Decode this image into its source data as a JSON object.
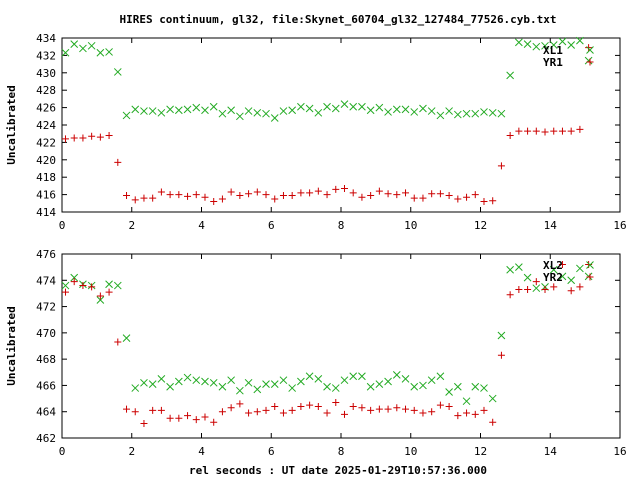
{
  "title": "HIRES continuum, gl32, file:Skynet_60704_gl32_127484_77526.cyb.txt",
  "xlabel": "rel seconds : UT date 2025-01-29T10:57:36.000",
  "colors": {
    "red": "#cc0000",
    "green": "#22aa22",
    "axis": "#000000"
  },
  "chart_data": [
    {
      "type": "scatter",
      "ylabel": "Uncalibrated",
      "xlim": [
        0,
        16
      ],
      "ylim": [
        414,
        434
      ],
      "xticks": [
        0,
        2,
        4,
        6,
        8,
        10,
        12,
        14,
        16
      ],
      "yticks": [
        414,
        416,
        418,
        420,
        422,
        424,
        426,
        428,
        430,
        432,
        434
      ],
      "legend": "top-right",
      "series": [
        {
          "name": "XL1",
          "marker": "x",
          "color": "#22aa22",
          "x": [
            0.1,
            0.35,
            0.6,
            0.85,
            1.1,
            1.35,
            1.6,
            1.85,
            2.1,
            2.35,
            2.6,
            2.85,
            3.1,
            3.35,
            3.6,
            3.85,
            4.1,
            4.35,
            4.6,
            4.85,
            5.1,
            5.35,
            5.6,
            5.85,
            6.1,
            6.35,
            6.6,
            6.85,
            7.1,
            7.35,
            7.6,
            7.85,
            8.1,
            8.35,
            8.6,
            8.85,
            9.1,
            9.35,
            9.6,
            9.85,
            10.1,
            10.35,
            10.6,
            10.85,
            11.1,
            11.35,
            11.6,
            11.85,
            12.1,
            12.35,
            12.6,
            12.85,
            13.1,
            13.35,
            13.6,
            13.85,
            14.1,
            14.35,
            14.6,
            14.85,
            15.1
          ],
          "y": [
            432.3,
            433.3,
            432.8,
            433.1,
            432.3,
            432.4,
            430.1,
            425.1,
            425.8,
            425.6,
            425.6,
            425.4,
            425.8,
            425.7,
            425.8,
            426.0,
            425.7,
            426.1,
            425.3,
            425.7,
            425.0,
            425.6,
            425.4,
            425.3,
            424.8,
            425.6,
            425.7,
            426.1,
            425.9,
            425.4,
            426.1,
            425.9,
            426.4,
            426.1,
            426.1,
            425.7,
            426.0,
            425.5,
            425.8,
            425.8,
            425.5,
            425.9,
            425.6,
            425.1,
            425.6,
            425.2,
            425.3,
            425.3,
            425.5,
            425.4,
            425.3,
            429.7,
            433.5,
            433.3,
            433.0,
            433.1,
            433.2,
            433.6,
            433.2,
            433.7,
            431.4
          ]
        },
        {
          "name": "YR1",
          "marker": "+",
          "color": "#cc0000",
          "x": [
            0.1,
            0.35,
            0.6,
            0.85,
            1.1,
            1.35,
            1.6,
            1.85,
            2.1,
            2.35,
            2.6,
            2.85,
            3.1,
            3.35,
            3.6,
            3.85,
            4.1,
            4.35,
            4.6,
            4.85,
            5.1,
            5.35,
            5.6,
            5.85,
            6.1,
            6.35,
            6.6,
            6.85,
            7.1,
            7.35,
            7.6,
            7.85,
            8.1,
            8.35,
            8.6,
            8.85,
            9.1,
            9.35,
            9.6,
            9.85,
            10.1,
            10.35,
            10.6,
            10.85,
            11.1,
            11.35,
            11.6,
            11.85,
            12.1,
            12.35,
            12.6,
            12.85,
            13.1,
            13.35,
            13.6,
            13.85,
            14.1,
            14.35,
            14.6,
            14.85,
            15.1
          ],
          "y": [
            422.4,
            422.5,
            422.5,
            422.7,
            422.6,
            422.8,
            419.7,
            415.9,
            415.4,
            415.6,
            415.6,
            416.3,
            416.0,
            416.0,
            415.8,
            416.0,
            415.7,
            415.2,
            415.5,
            416.3,
            415.9,
            416.1,
            416.3,
            416.0,
            415.5,
            415.9,
            415.9,
            416.2,
            416.2,
            416.4,
            416.0,
            416.6,
            416.7,
            416.2,
            415.7,
            415.9,
            416.4,
            416.1,
            416.0,
            416.2,
            415.6,
            415.6,
            416.1,
            416.1,
            415.9,
            415.5,
            415.7,
            416.0,
            415.2,
            415.3,
            419.3,
            422.8,
            423.3,
            423.3,
            423.3,
            423.2,
            423.3,
            423.3,
            423.3,
            423.5,
            432.9
          ]
        }
      ]
    },
    {
      "type": "scatter",
      "ylabel": "Uncalibrated",
      "xlim": [
        0,
        16
      ],
      "ylim": [
        462,
        476
      ],
      "xticks": [
        0,
        2,
        4,
        6,
        8,
        10,
        12,
        14,
        16
      ],
      "yticks": [
        462,
        464,
        466,
        468,
        470,
        472,
        474,
        476
      ],
      "legend": "top-right",
      "series": [
        {
          "name": "XL2",
          "marker": "x",
          "color": "#22aa22",
          "x": [
            0.1,
            0.35,
            0.6,
            0.85,
            1.1,
            1.35,
            1.6,
            1.85,
            2.1,
            2.35,
            2.6,
            2.85,
            3.1,
            3.35,
            3.6,
            3.85,
            4.1,
            4.35,
            4.6,
            4.85,
            5.1,
            5.35,
            5.6,
            5.85,
            6.1,
            6.35,
            6.6,
            6.85,
            7.1,
            7.35,
            7.6,
            7.85,
            8.1,
            8.35,
            8.6,
            8.85,
            9.1,
            9.35,
            9.6,
            9.85,
            10.1,
            10.35,
            10.6,
            10.85,
            11.1,
            11.35,
            11.6,
            11.85,
            12.1,
            12.35,
            12.6,
            12.85,
            13.1,
            13.35,
            13.6,
            13.85,
            14.1,
            14.35,
            14.6,
            14.85,
            15.1
          ],
          "y": [
            473.6,
            474.2,
            473.7,
            473.6,
            472.5,
            473.7,
            473.6,
            469.6,
            465.8,
            466.2,
            466.1,
            466.5,
            465.9,
            466.3,
            466.6,
            466.4,
            466.3,
            466.2,
            465.9,
            466.4,
            465.6,
            466.2,
            465.7,
            466.1,
            466.1,
            466.4,
            465.8,
            466.3,
            466.7,
            466.5,
            465.9,
            465.8,
            466.4,
            466.7,
            466.7,
            465.9,
            466.1,
            466.3,
            466.8,
            466.5,
            465.9,
            466.0,
            466.4,
            466.7,
            465.5,
            465.9,
            464.8,
            465.9,
            465.8,
            465.0,
            469.8,
            474.8,
            475.0,
            474.2,
            473.4,
            473.5,
            474.8,
            474.3,
            474.0,
            474.9,
            474.3
          ]
        },
        {
          "name": "YR2",
          "marker": "+",
          "color": "#cc0000",
          "x": [
            0.1,
            0.35,
            0.6,
            0.85,
            1.1,
            1.35,
            1.6,
            1.85,
            2.1,
            2.35,
            2.6,
            2.85,
            3.1,
            3.35,
            3.6,
            3.85,
            4.1,
            4.35,
            4.6,
            4.85,
            5.1,
            5.35,
            5.6,
            5.85,
            6.1,
            6.35,
            6.6,
            6.85,
            7.1,
            7.35,
            7.6,
            7.85,
            8.1,
            8.35,
            8.6,
            8.85,
            9.1,
            9.35,
            9.6,
            9.85,
            10.1,
            10.35,
            10.6,
            10.85,
            11.1,
            11.35,
            11.6,
            11.85,
            12.1,
            12.35,
            12.6,
            12.85,
            13.1,
            13.35,
            13.6,
            13.85,
            14.1,
            14.35,
            14.6,
            14.85,
            15.1
          ],
          "y": [
            473.1,
            473.9,
            473.6,
            473.5,
            472.8,
            473.1,
            469.3,
            464.2,
            464.0,
            463.1,
            464.1,
            464.1,
            463.5,
            463.5,
            463.7,
            463.4,
            463.6,
            463.2,
            464.0,
            464.3,
            464.6,
            463.9,
            464.0,
            464.1,
            464.4,
            463.9,
            464.1,
            464.4,
            464.5,
            464.4,
            463.9,
            464.7,
            463.8,
            464.4,
            464.3,
            464.1,
            464.2,
            464.2,
            464.3,
            464.2,
            464.1,
            463.9,
            464.0,
            464.5,
            464.4,
            463.7,
            463.9,
            463.8,
            464.1,
            463.2,
            468.3,
            472.9,
            473.3,
            473.3,
            473.9,
            473.3,
            473.5,
            475.2,
            473.2,
            473.5,
            475.2
          ]
        }
      ]
    }
  ]
}
